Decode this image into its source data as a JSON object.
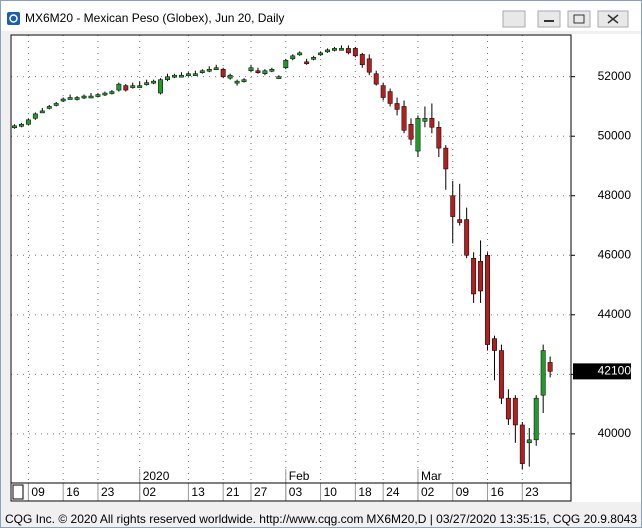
{
  "window_title": "MX6M20 - Mexican Peso (Globex), Jun 20, Daily",
  "chart_data": {
    "type": "candlestick",
    "up_color": "#1f9a2b",
    "down_color": "#b21f1f",
    "grid": true,
    "ylim": [
      38350,
      53400
    ],
    "yticks": [
      40000,
      42000,
      44000,
      46000,
      48000,
      50000,
      52000
    ],
    "current_price": 42100,
    "xlim": [
      -0.5,
      80
    ],
    "xticks": [
      {
        "value": 2,
        "label": "09"
      },
      {
        "value": 7,
        "label": "16"
      },
      {
        "value": 12,
        "label": "23"
      },
      {
        "value": 18,
        "label": "02"
      },
      {
        "value": 25,
        "label": "13"
      },
      {
        "value": 30,
        "label": "21"
      },
      {
        "value": 34,
        "label": "27"
      },
      {
        "value": 39,
        "label": "03"
      },
      {
        "value": 44,
        "label": "10"
      },
      {
        "value": 49,
        "label": "18"
      },
      {
        "value": 53,
        "label": "24"
      },
      {
        "value": 58,
        "label": "02"
      },
      {
        "value": 63,
        "label": "09"
      },
      {
        "value": 68,
        "label": "16"
      },
      {
        "value": 73,
        "label": "23"
      }
    ],
    "period_labels": [
      {
        "value": 18,
        "label": "2020"
      },
      {
        "value": 39,
        "label": "Feb"
      },
      {
        "value": 58,
        "label": "Mar"
      }
    ],
    "open": [
      50300,
      50350,
      50400,
      50600,
      50850,
      50950,
      51050,
      51200,
      51300,
      51250,
      51300,
      51350,
      51350,
      51400,
      51450,
      51550,
      51700,
      51650,
      51700,
      51750,
      51800,
      51450,
      51900,
      52000,
      52050,
      52050,
      52100,
      52150,
      52200,
      52300,
      52250,
      51950,
      51800,
      51850,
      52200,
      52200,
      52100,
      52200,
      52000,
      52300,
      52600,
      52750,
      52500,
      52600,
      52750,
      52850,
      52900,
      52950,
      52950,
      52950,
      52750,
      52600,
      52100,
      51700,
      51500,
      51100,
      51000,
      50400,
      49500,
      50500,
      50600,
      50300,
      49600,
      48000,
      47200,
      47200,
      45900,
      45800,
      46000,
      43200,
      42800,
      41200,
      41200,
      40300,
      39700,
      39800,
      41300,
      42400
    ],
    "high": [
      50400,
      50450,
      50600,
      50800,
      50950,
      51050,
      51150,
      51300,
      51400,
      51350,
      51400,
      51450,
      51450,
      51500,
      51550,
      51800,
      51750,
      51800,
      51850,
      51900,
      51900,
      51950,
      52100,
      52100,
      52150,
      52150,
      52200,
      52250,
      52350,
      52400,
      52300,
      52100,
      51900,
      51950,
      52400,
      52300,
      52250,
      52300,
      52050,
      52600,
      52750,
      52850,
      52600,
      52700,
      52850,
      52950,
      53000,
      53050,
      53050,
      53000,
      52800,
      52750,
      52200,
      51800,
      51600,
      51300,
      51200,
      50600,
      50700,
      51000,
      51100,
      50500,
      49700,
      48500,
      48400,
      47600,
      46100,
      46500,
      46100,
      43300,
      43000,
      41500,
      41300,
      40400,
      40200,
      41300,
      43000,
      42600
    ],
    "low": [
      50250,
      50300,
      50380,
      50550,
      50800,
      50900,
      51000,
      51150,
      51250,
      51200,
      51250,
      51300,
      51300,
      51350,
      51400,
      51500,
      51500,
      51600,
      51650,
      51700,
      51750,
      51400,
      51850,
      51950,
      52000,
      52000,
      52050,
      52100,
      52150,
      52250,
      51950,
      51900,
      51700,
      51800,
      52150,
      52100,
      52050,
      52150,
      51950,
      52250,
      52550,
      52700,
      52400,
      52550,
      52700,
      52800,
      52850,
      52900,
      52750,
      52650,
      52300,
      52050,
      51700,
      51200,
      51000,
      50700,
      50100,
      49700,
      49300,
      50300,
      50100,
      49300,
      48200,
      46400,
      47000,
      45900,
      44400,
      44400,
      42800,
      41800,
      41000,
      40300,
      39700,
      38800,
      38900,
      39600,
      40700,
      41900
    ],
    "close": [
      50350,
      50400,
      50550,
      50750,
      50850,
      51000,
      51100,
      51250,
      51300,
      51300,
      51350,
      51350,
      51400,
      51450,
      51500,
      51750,
      51550,
      51700,
      51700,
      51800,
      51850,
      51900,
      52000,
      52050,
      52050,
      52100,
      52100,
      52200,
      52250,
      52300,
      52000,
      52050,
      51850,
      51900,
      52300,
      52150,
      52200,
      52250,
      52000,
      52550,
      52700,
      52800,
      52450,
      52650,
      52800,
      52900,
      52950,
      52950,
      52800,
      52700,
      52400,
      52150,
      51750,
      51300,
      51100,
      50900,
      50200,
      49900,
      50600,
      50600,
      50300,
      49600,
      48900,
      47300,
      47100,
      46000,
      44700,
      44800,
      43000,
      42800,
      41200,
      40500,
      40300,
      39000,
      39800,
      41200,
      42800,
      42100
    ]
  },
  "footer": {
    "left": "CQG Inc. © 2020 All rights reserved worldwide. http://www.cqg.com",
    "right": "MX6M20,D | 03/27/2020 13:35:15, CQG 20.9.8043"
  }
}
